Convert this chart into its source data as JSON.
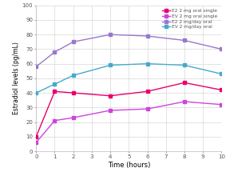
{
  "series": [
    {
      "label": "E2 2 mg oral single",
      "color": "#e8006e",
      "x": [
        0,
        1,
        2,
        4,
        6,
        8,
        10
      ],
      "y": [
        10,
        41,
        40,
        38,
        41,
        47,
        42
      ]
    },
    {
      "label": "EV 2 mg oral single",
      "color": "#cc44dd",
      "x": [
        0,
        1,
        2,
        4,
        6,
        8,
        10
      ],
      "y": [
        6,
        21,
        23,
        28,
        29,
        34,
        32
      ]
    },
    {
      "label": "E2 2 mg/day oral",
      "color": "#9977cc",
      "x": [
        0,
        1,
        2,
        4,
        6,
        8,
        10
      ],
      "y": [
        58,
        68,
        75,
        80,
        79,
        76,
        70
      ]
    },
    {
      "label": "EV 2 mg/day oral",
      "color": "#44aacc",
      "x": [
        0,
        1,
        2,
        4,
        6,
        8,
        10
      ],
      "y": [
        40,
        46,
        52,
        59,
        60,
        59,
        53
      ]
    }
  ],
  "xlabel": "Time (hours)",
  "ylabel": "Estradiol levels (pg/mL)",
  "xlim": [
    0,
    10
  ],
  "ylim": [
    0,
    100
  ],
  "xticks": [
    0,
    1,
    2,
    3,
    4,
    5,
    6,
    7,
    8,
    9,
    10
  ],
  "yticks": [
    0,
    10,
    20,
    30,
    40,
    50,
    60,
    70,
    80,
    90,
    100
  ],
  "grid_color": "#d8d8d8",
  "background_color": "#ffffff",
  "marker": "s",
  "marker_size": 2.5,
  "line_width": 1.0
}
